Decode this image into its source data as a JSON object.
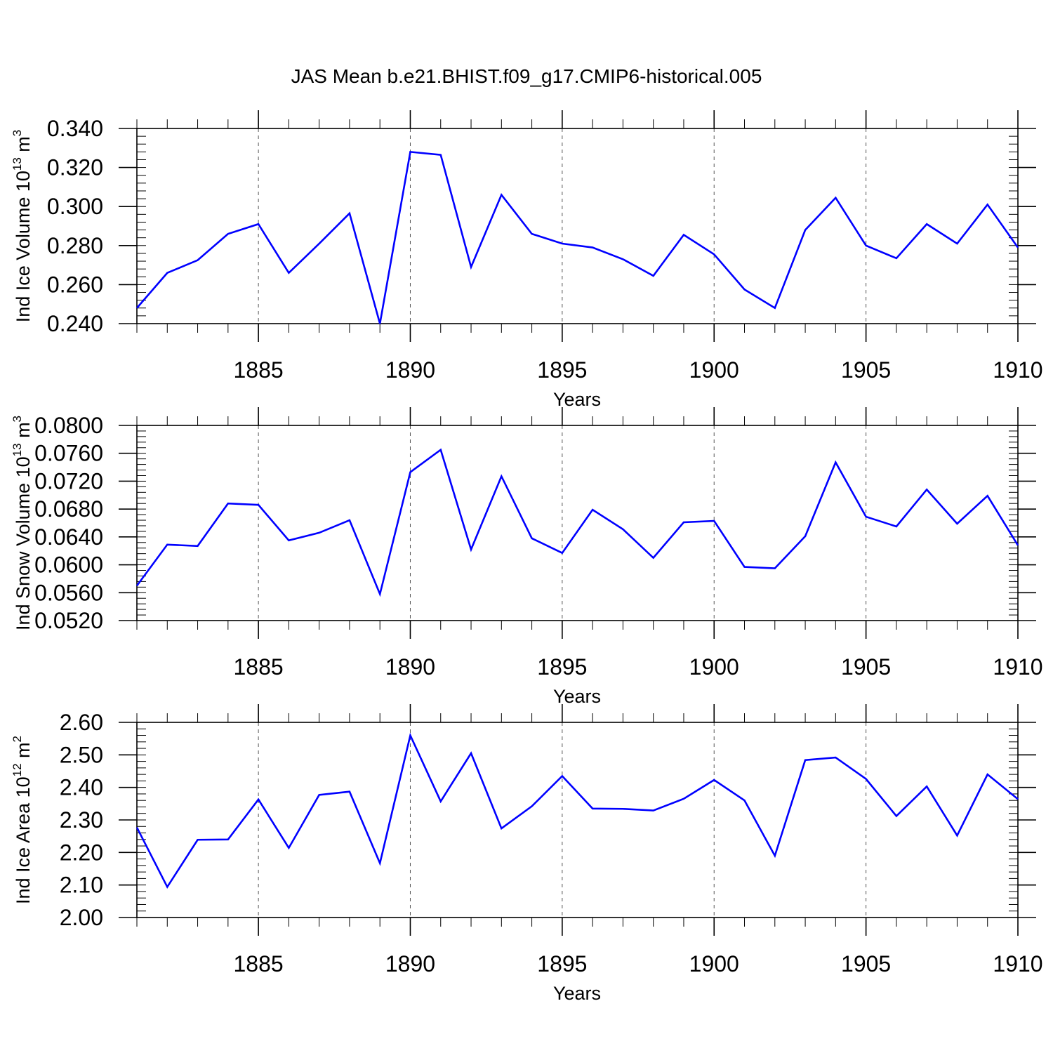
{
  "title": "JAS Mean b.e21.BHIST.f09_g17.CMIP6-historical.005",
  "colors": {
    "series": "#0000ff",
    "axis": "#000000",
    "grid": "#555555"
  },
  "chart_data": [
    {
      "type": "line",
      "xlabel": "Years",
      "ylabel": "Ind Ice Volume 10",
      "ylabel_exp": "13",
      "ylabel_unit": " m",
      "ylabel_unit_exp": "3",
      "xlim": [
        1881,
        1910
      ],
      "ylim": [
        0.24,
        0.34
      ],
      "x_ticks": [
        1885,
        1890,
        1895,
        1900,
        1905,
        1910
      ],
      "x_tick_labels": [
        "1885",
        "1890",
        "1895",
        "1900",
        "1905",
        "1910"
      ],
      "y_ticks": [
        0.24,
        0.26,
        0.28,
        0.3,
        0.32,
        0.34
      ],
      "y_tick_labels": [
        "0.240",
        "0.260",
        "0.280",
        "0.300",
        "0.320",
        "0.340"
      ],
      "y_minor_step": 0.004,
      "grid": "vertical dashed at major x ticks",
      "x": [
        1881,
        1882,
        1883,
        1884,
        1885,
        1886,
        1887,
        1888,
        1889,
        1890,
        1891,
        1892,
        1893,
        1894,
        1895,
        1896,
        1897,
        1898,
        1899,
        1900,
        1901,
        1902,
        1903,
        1904,
        1905,
        1906,
        1907,
        1908,
        1909,
        1910
      ],
      "values": [
        0.248,
        0.266,
        0.2725,
        0.286,
        0.291,
        0.266,
        0.281,
        0.2965,
        0.24,
        0.328,
        0.3265,
        0.269,
        0.306,
        0.286,
        0.281,
        0.279,
        0.273,
        0.2645,
        0.2855,
        0.2755,
        0.2575,
        0.248,
        0.288,
        0.3045,
        0.28,
        0.2735,
        0.291,
        0.281,
        0.301,
        0.279
      ]
    },
    {
      "type": "line",
      "xlabel": "Years",
      "ylabel": "Ind Snow Volume 10",
      "ylabel_exp": "13",
      "ylabel_unit": " m",
      "ylabel_unit_exp": "3",
      "xlim": [
        1881,
        1910
      ],
      "ylim": [
        0.052,
        0.08
      ],
      "x_ticks": [
        1885,
        1890,
        1895,
        1900,
        1905,
        1910
      ],
      "x_tick_labels": [
        "1885",
        "1890",
        "1895",
        "1900",
        "1905",
        "1910"
      ],
      "y_ticks": [
        0.052,
        0.056,
        0.06,
        0.064,
        0.068,
        0.072,
        0.076,
        0.08
      ],
      "y_tick_labels": [
        "0.0520",
        "0.0560",
        "0.0600",
        "0.0640",
        "0.0680",
        "0.0720",
        "0.0760",
        "0.0800"
      ],
      "y_minor_step": 0.0008,
      "grid": "vertical dashed at major x ticks",
      "x": [
        1881,
        1882,
        1883,
        1884,
        1885,
        1886,
        1887,
        1888,
        1889,
        1890,
        1891,
        1892,
        1893,
        1894,
        1895,
        1896,
        1897,
        1898,
        1899,
        1900,
        1901,
        1902,
        1903,
        1904,
        1905,
        1906,
        1907,
        1908,
        1909,
        1910
      ],
      "values": [
        0.057,
        0.0629,
        0.0627,
        0.0688,
        0.0686,
        0.0635,
        0.0646,
        0.0664,
        0.0558,
        0.0733,
        0.0765,
        0.0622,
        0.0727,
        0.0638,
        0.0617,
        0.0679,
        0.0651,
        0.061,
        0.0661,
        0.0663,
        0.0597,
        0.0595,
        0.0641,
        0.0747,
        0.0669,
        0.0655,
        0.0708,
        0.0659,
        0.0699,
        0.0628
      ]
    },
    {
      "type": "line",
      "xlabel": "Years",
      "ylabel": "Ind Ice Area 10",
      "ylabel_exp": "12",
      "ylabel_unit": " m",
      "ylabel_unit_exp": "2",
      "xlim": [
        1881,
        1910
      ],
      "ylim": [
        2.0,
        2.6
      ],
      "x_ticks": [
        1885,
        1890,
        1895,
        1900,
        1905,
        1910
      ],
      "x_tick_labels": [
        "1885",
        "1890",
        "1895",
        "1900",
        "1905",
        "1910"
      ],
      "y_ticks": [
        2.0,
        2.1,
        2.2,
        2.3,
        2.4,
        2.5,
        2.6
      ],
      "y_tick_labels": [
        "2.00",
        "2.10",
        "2.20",
        "2.30",
        "2.40",
        "2.50",
        "2.60"
      ],
      "y_minor_step": 0.02,
      "grid": "vertical dashed at major x ticks",
      "x": [
        1881,
        1882,
        1883,
        1884,
        1885,
        1886,
        1887,
        1888,
        1889,
        1890,
        1891,
        1892,
        1893,
        1894,
        1895,
        1896,
        1897,
        1898,
        1899,
        1900,
        1901,
        1902,
        1903,
        1904,
        1905,
        1906,
        1907,
        1908,
        1909,
        1910
      ],
      "values": [
        2.277,
        2.094,
        2.239,
        2.24,
        2.363,
        2.214,
        2.377,
        2.387,
        2.167,
        2.56,
        2.357,
        2.505,
        2.274,
        2.342,
        2.435,
        2.335,
        2.334,
        2.329,
        2.365,
        2.423,
        2.36,
        2.19,
        2.484,
        2.492,
        2.426,
        2.312,
        2.403,
        2.252,
        2.44,
        2.364
      ]
    }
  ]
}
